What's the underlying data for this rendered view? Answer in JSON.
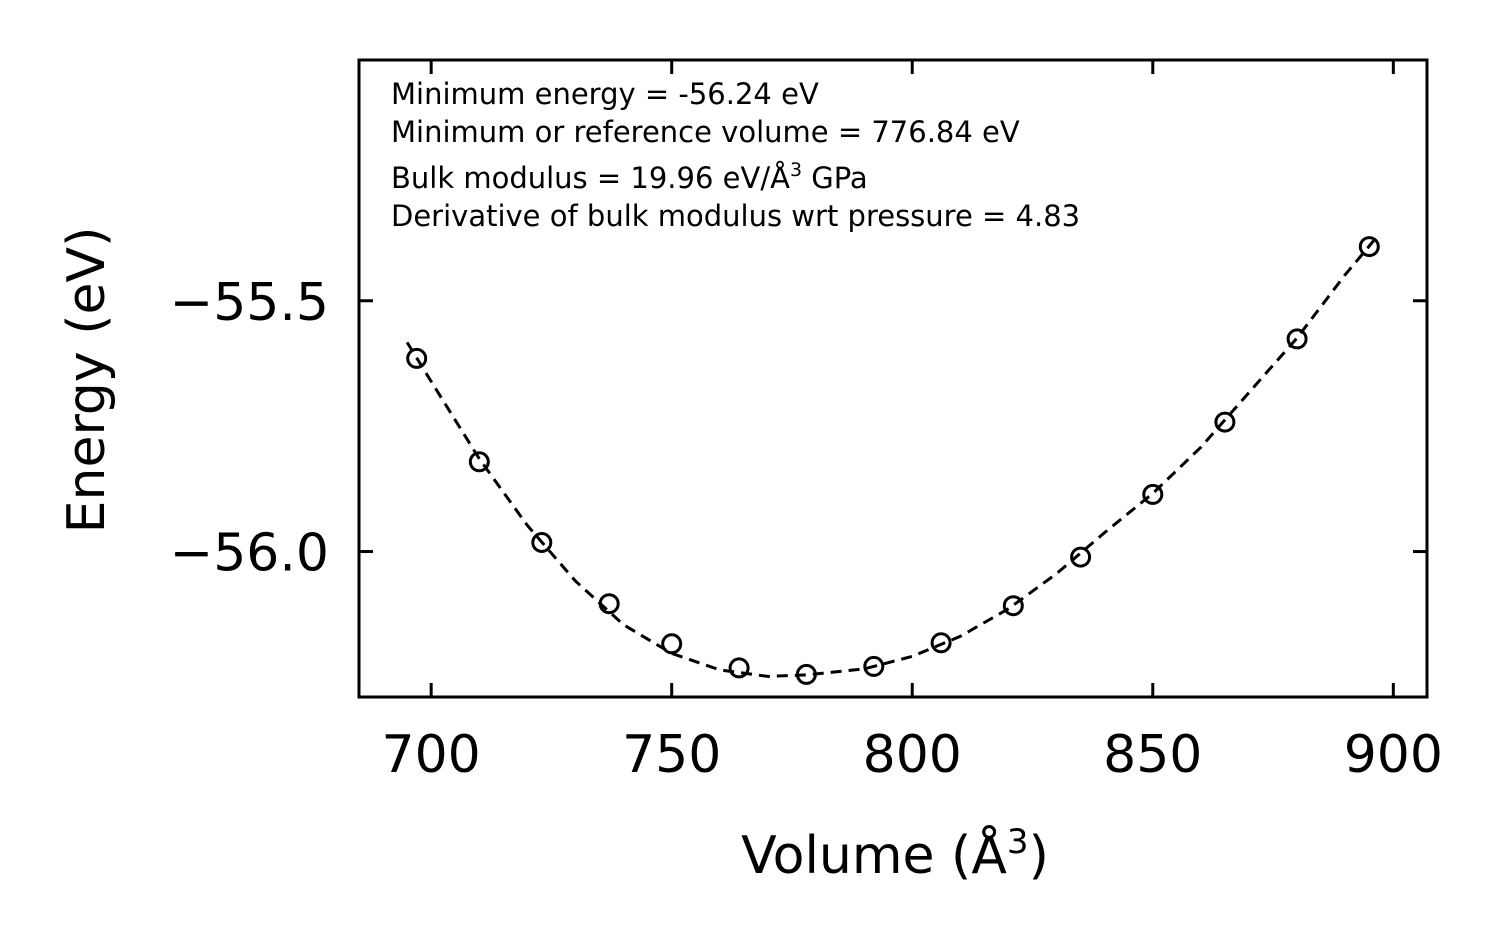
{
  "chart_data": {
    "type": "scatter",
    "xlabel": "Volume (Å",
    "xlabel_sup": "3",
    "xlabel_close": ")",
    "ylabel": "Energy (eV)",
    "xlim": [
      685,
      907
    ],
    "ylim": [
      -56.29,
      -55.02
    ],
    "x_ticks": [
      700,
      750,
      800,
      850,
      900
    ],
    "x_tick_labels": [
      "700",
      "750",
      "800",
      "850",
      "900"
    ],
    "y_ticks": [
      -55.5,
      -56.0
    ],
    "y_tick_labels": [
      "−55.5",
      "−56.0"
    ],
    "series": [
      {
        "name": "data",
        "style": "open-circle",
        "x": [
          697,
          710,
          723,
          737,
          750,
          764,
          778,
          792,
          806,
          821,
          835,
          850,
          865,
          880,
          895
        ],
        "y": [
          -55.615,
          -55.821,
          -55.982,
          -56.104,
          -56.184,
          -56.232,
          -56.245,
          -56.229,
          -56.182,
          -56.108,
          -56.011,
          -55.886,
          -55.742,
          -55.576,
          -55.392
        ]
      },
      {
        "name": "fit",
        "style": "dashed-line",
        "x": [
          695,
          700,
          710,
          720,
          730,
          740,
          750,
          760,
          770,
          778,
          790,
          800,
          810,
          820,
          830,
          840,
          850,
          860,
          870,
          880,
          890,
          897
        ],
        "y": [
          -55.583,
          -55.661,
          -55.815,
          -55.948,
          -56.059,
          -56.146,
          -56.203,
          -56.236,
          -56.249,
          -56.246,
          -56.234,
          -56.209,
          -56.169,
          -56.114,
          -56.044,
          -55.962,
          -55.884,
          -55.792,
          -55.683,
          -55.574,
          -55.448,
          -55.368
        ]
      }
    ],
    "annotations": [
      {
        "prefix": "Minimum energy = -56.24 eV",
        "sup": "",
        "suffix": ""
      },
      {
        "prefix": "Minimum or reference volume = 776.84 eV",
        "sup": "",
        "suffix": ""
      },
      {
        "prefix": "Bulk modulus = 19.96 eV/Å",
        "sup": "3",
        "suffix": " GPa"
      },
      {
        "prefix": "Derivative of bulk modulus wrt pressure = 4.83",
        "sup": "",
        "suffix": ""
      }
    ]
  }
}
